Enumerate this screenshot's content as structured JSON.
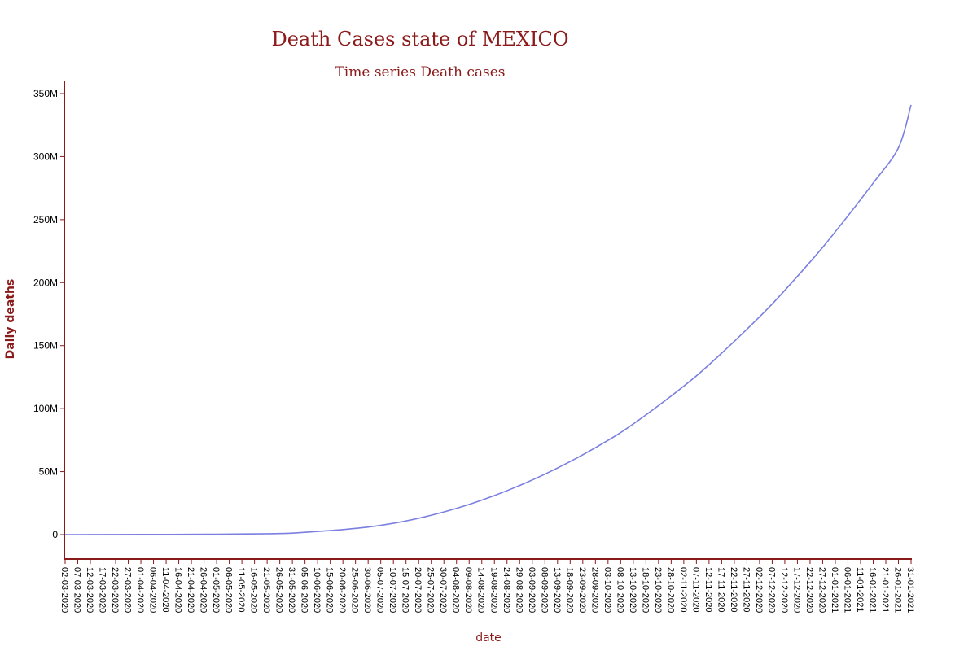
{
  "chart_data": {
    "type": "line",
    "title": "Death Cases state of MEXICO",
    "subtitle": "Time series Death cases",
    "xlabel": "date",
    "ylabel": "Daily deaths",
    "ylim": [
      -20000000,
      360000000
    ],
    "yticks": [
      0,
      50000000,
      100000000,
      150000000,
      200000000,
      250000000,
      300000000,
      350000000
    ],
    "ytick_labels": [
      "0",
      "50M",
      "100M",
      "150M",
      "200M",
      "250M",
      "300M",
      "350M"
    ],
    "x_start": "02-03-2020",
    "x_end": "31-01-2021",
    "x_tick_labels": [
      "02-03-2020",
      "07-03-2020",
      "12-03-2020",
      "17-03-2020",
      "22-03-2020",
      "27-03-2020",
      "01-04-2020",
      "06-04-2020",
      "11-04-2020",
      "16-04-2020",
      "21-04-2020",
      "26-04-2020",
      "01-05-2020",
      "06-05-2020",
      "11-05-2020",
      "16-05-2020",
      "21-05-2020",
      "26-05-2020",
      "31-05-2020",
      "05-06-2020",
      "10-06-2020",
      "15-06-2020",
      "20-06-2020",
      "25-06-2020",
      "30-06-2020",
      "05-07-2020",
      "10-07-2020",
      "15-07-2020",
      "20-07-2020",
      "25-07-2020",
      "30-07-2020",
      "04-08-2020",
      "09-08-2020",
      "14-08-2020",
      "19-08-2020",
      "24-08-2020",
      "29-08-2020",
      "03-09-2020",
      "08-09-2020",
      "13-09-2020",
      "18-09-2020",
      "23-09-2020",
      "28-09-2020",
      "03-10-2020",
      "08-10-2020",
      "13-10-2020",
      "18-10-2020",
      "23-10-2020",
      "28-10-2020",
      "02-11-2020",
      "07-11-2020",
      "12-11-2020",
      "17-11-2020",
      "22-11-2020",
      "27-11-2020",
      "02-12-2020",
      "07-12-2020",
      "12-12-2020",
      "17-12-2020",
      "22-12-2020",
      "27-12-2020",
      "01-01-2021",
      "06-01-2021",
      "11-01-2021",
      "16-01-2021",
      "21-01-2021",
      "26-01-2021",
      "31-01-2021"
    ],
    "series": [
      {
        "color": "#7b7fe0",
        "points": [
          [
            "02-03-2020",
            0
          ],
          [
            "01-04-2020",
            100000
          ],
          [
            "01-05-2020",
            300000
          ],
          [
            "21-05-2020",
            700000
          ],
          [
            "31-05-2020",
            1200000
          ],
          [
            "10-06-2020",
            2500000
          ],
          [
            "20-06-2020",
            4000000
          ],
          [
            "30-06-2020",
            6000000
          ],
          [
            "10-07-2020",
            9000000
          ],
          [
            "20-07-2020",
            13000000
          ],
          [
            "30-07-2020",
            18000000
          ],
          [
            "09-08-2020",
            24000000
          ],
          [
            "19-08-2020",
            31000000
          ],
          [
            "29-08-2020",
            39000000
          ],
          [
            "08-09-2020",
            48000000
          ],
          [
            "18-09-2020",
            58000000
          ],
          [
            "28-09-2020",
            69000000
          ],
          [
            "08-10-2020",
            81000000
          ],
          [
            "18-10-2020",
            95000000
          ],
          [
            "28-10-2020",
            110000000
          ],
          [
            "07-11-2020",
            126000000
          ],
          [
            "17-11-2020",
            144000000
          ],
          [
            "27-11-2020",
            163000000
          ],
          [
            "07-12-2020",
            183000000
          ],
          [
            "17-12-2020",
            205000000
          ],
          [
            "27-12-2020",
            228000000
          ],
          [
            "06-01-2021",
            253000000
          ],
          [
            "16-01-2021",
            279000000
          ],
          [
            "26-01-2021",
            307000000
          ],
          [
            "31-01-2021",
            341000000
          ]
        ]
      }
    ]
  }
}
